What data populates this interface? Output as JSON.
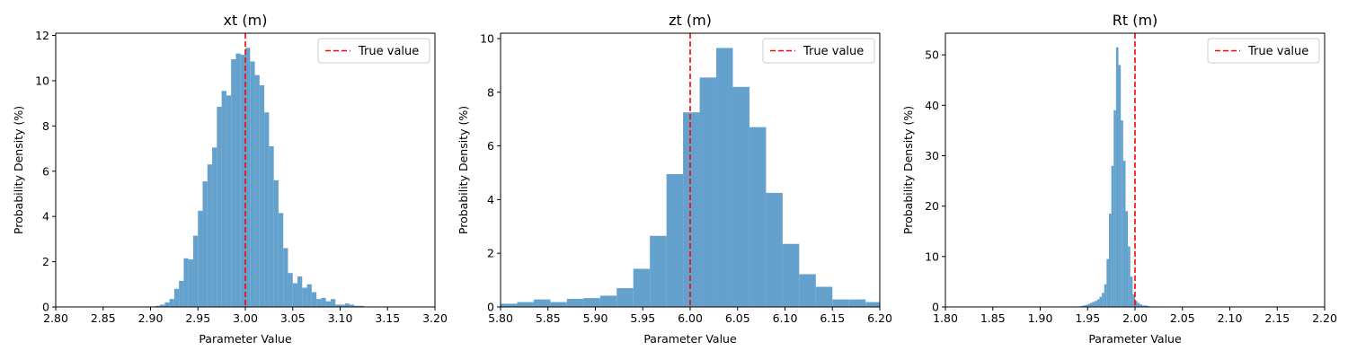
{
  "chart_data": [
    {
      "type": "bar",
      "title": "xt (m)",
      "xlabel": "Parameter Value",
      "ylabel": "Probability Density (%)",
      "xlim": [
        2.8,
        3.2
      ],
      "ylim": [
        0,
        12.1
      ],
      "xticks": [
        "2.80",
        "2.85",
        "2.90",
        "2.95",
        "3.00",
        "3.05",
        "3.10",
        "3.15",
        "3.20"
      ],
      "yticks": [
        "0",
        "2",
        "4",
        "6",
        "8",
        "10",
        "12"
      ],
      "bins": {
        "start": 2.905,
        "width": 0.005,
        "values": [
          0.05,
          0.1,
          0.2,
          0.35,
          0.8,
          1.15,
          2.15,
          2.1,
          3.15,
          4.25,
          5.55,
          6.3,
          7.05,
          8.85,
          9.55,
          9.35,
          10.95,
          11.2,
          11.15,
          11.45,
          10.85,
          10.25,
          9.8,
          8.6,
          7.1,
          5.6,
          4.15,
          2.6,
          1.5,
          1.05,
          1.35,
          0.85,
          1.0,
          0.65,
          0.35,
          0.4,
          0.25,
          0.35,
          0.1,
          0.1,
          0.15,
          0.1,
          0.05,
          0.05,
          0.02,
          0.02,
          0.02,
          0.02
        ]
      },
      "reference_line": {
        "x": 3.0,
        "label": "True value",
        "color": "#ff0000",
        "style": "dashed"
      },
      "bar_color": "#64a1cc",
      "legend": {
        "position": "top-right",
        "entries": [
          "True value"
        ]
      }
    },
    {
      "type": "bar",
      "title": "zt (m)",
      "xlabel": "Parameter Value",
      "ylabel": "Probability Density (%)",
      "xlim": [
        5.8,
        6.2
      ],
      "ylim": [
        0,
        10.2
      ],
      "xticks": [
        "5.80",
        "5.85",
        "5.90",
        "5.95",
        "6.00",
        "6.05",
        "6.10",
        "6.15",
        "6.20"
      ],
      "yticks": [
        "0",
        "2",
        "4",
        "6",
        "8",
        "10"
      ],
      "bins": {
        "start": 5.8,
        "width": 0.0175,
        "values": [
          0.12,
          0.18,
          0.28,
          0.18,
          0.3,
          0.33,
          0.42,
          0.7,
          1.42,
          2.65,
          4.95,
          7.25,
          8.55,
          9.65,
          8.2,
          6.7,
          4.25,
          2.35,
          1.22,
          0.75,
          0.28,
          0.28,
          0.18,
          0.12
        ]
      },
      "reference_line": {
        "x": 6.0,
        "label": "True value",
        "color": "#ff0000",
        "style": "dashed"
      },
      "bar_color": "#64a1cc",
      "legend": {
        "position": "top-right",
        "entries": [
          "True value"
        ]
      }
    },
    {
      "type": "bar",
      "title": "Rt (m)",
      "xlabel": "Parameter Value",
      "ylabel": "Probability Density (%)",
      "xlim": [
        1.8,
        2.2
      ],
      "ylim": [
        0,
        54.3
      ],
      "xticks": [
        "1.80",
        "1.85",
        "1.90",
        "1.95",
        "2.00",
        "2.05",
        "2.10",
        "2.15",
        "2.20"
      ],
      "yticks": [
        "0",
        "10",
        "20",
        "30",
        "40",
        "50"
      ],
      "bins": {
        "start": 1.94,
        "width": 0.0025,
        "values": [
          0.1,
          0.2,
          0.3,
          0.4,
          0.6,
          0.8,
          1.0,
          1.2,
          1.5,
          2.0,
          2.8,
          4.5,
          9.5,
          18.5,
          28.0,
          39.0,
          51.5,
          48.0,
          37.0,
          29.0,
          19.0,
          12.0,
          6.0,
          2.5,
          1.2,
          0.8,
          0.5,
          0.3,
          0.3,
          0.2,
          0.1,
          0.1,
          0.1,
          0.1
        ]
      },
      "reference_line": {
        "x": 2.0,
        "label": "True value",
        "color": "#ff0000",
        "style": "dashed"
      },
      "bar_color": "#64a1cc",
      "legend": {
        "position": "top-right",
        "entries": [
          "True value"
        ]
      }
    }
  ]
}
